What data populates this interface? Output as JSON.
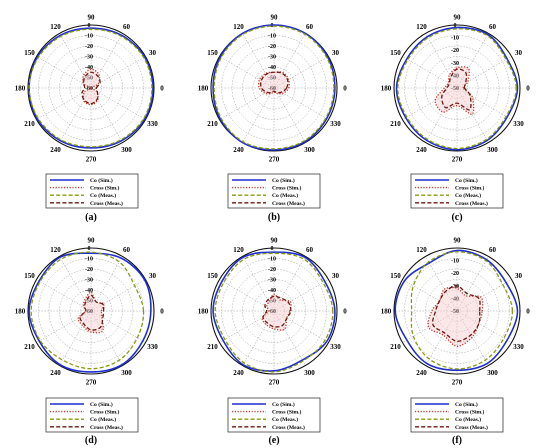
{
  "figure": {
    "panels": [
      "a",
      "b",
      "c",
      "d",
      "e",
      "f"
    ]
  },
  "chart_data": [
    {
      "type": "polar-line",
      "panel_label": "(a)",
      "angle_ticks": [
        "0",
        "30",
        "60",
        "90",
        "120",
        "150",
        "180",
        "210",
        "240",
        "270",
        "300",
        "330"
      ],
      "radial_ticks": [
        "0",
        "-10",
        "-20",
        "-30",
        "-40",
        "-50",
        "-60"
      ],
      "rlim": [
        -60,
        0
      ],
      "grid": true,
      "legend": [
        "Co (Sim.)",
        "Cross (Sim.)",
        "Co (Meas.)",
        "Cross (Meas.)"
      ],
      "series": [
        {
          "name": "Co (Sim.)",
          "style": "solid",
          "color": "#1f2fd0",
          "angles": [
            0,
            30,
            60,
            90,
            120,
            150,
            180,
            210,
            240,
            270,
            300,
            330
          ],
          "values": [
            -1,
            -1,
            -2,
            -3,
            -2,
            -1,
            -1,
            -1,
            -2,
            -3,
            -2,
            -1
          ]
        },
        {
          "name": "Cross (Sim.)",
          "style": "dotted",
          "color": "#c0392b",
          "angles": [
            0,
            30,
            60,
            90,
            120,
            150,
            180,
            210,
            240,
            270,
            300,
            330
          ],
          "values": [
            -60,
            -52,
            -45,
            -42,
            -46,
            -52,
            -60,
            -53,
            -46,
            -44,
            -47,
            -54
          ]
        },
        {
          "name": "Co (Meas.)",
          "style": "dashed",
          "color": "#8a9a10",
          "angles": [
            0,
            30,
            60,
            90,
            120,
            150,
            180,
            210,
            240,
            270,
            300,
            330
          ],
          "values": [
            -2,
            -2,
            -3,
            -4,
            -3,
            -2,
            -1,
            -2,
            -3,
            -4,
            -3,
            -2
          ]
        },
        {
          "name": "Cross (Meas.)",
          "style": "dashed",
          "color": "#6b1a10",
          "angles": [
            0,
            30,
            60,
            90,
            120,
            150,
            180,
            210,
            240,
            270,
            300,
            330
          ],
          "values": [
            -55,
            -50,
            -47,
            -45,
            -48,
            -52,
            -54,
            -50,
            -47,
            -45,
            -48,
            -53
          ]
        }
      ]
    },
    {
      "type": "polar-line",
      "panel_label": "(b)",
      "angle_ticks": [
        "0",
        "30",
        "60",
        "90",
        "120",
        "150",
        "180",
        "210",
        "240",
        "270",
        "300",
        "330"
      ],
      "radial_ticks": [
        "0",
        "-10",
        "-20",
        "-30",
        "-40",
        "-50",
        "-60"
      ],
      "rlim": [
        -60,
        0
      ],
      "grid": true,
      "legend": [
        "Co (Sim.)",
        "Cross (Sim.)",
        "Co (Meas.)",
        "Cross (Meas.)"
      ],
      "series": [
        {
          "name": "Co (Sim.)",
          "style": "solid",
          "color": "#1f2fd0",
          "angles": [
            0,
            30,
            60,
            90,
            120,
            150,
            180,
            210,
            240,
            270,
            300,
            330
          ],
          "values": [
            -2,
            -1,
            0,
            0,
            0,
            -1,
            -2,
            -1,
            0,
            -1,
            -1,
            -2
          ]
        },
        {
          "name": "Cross (Sim.)",
          "style": "dotted",
          "color": "#c0392b",
          "angles": [
            0,
            30,
            60,
            90,
            120,
            150,
            180,
            210,
            240,
            270,
            300,
            330
          ],
          "values": [
            -46,
            -44,
            -43,
            -45,
            -44,
            -44,
            -46,
            -50,
            -54,
            -56,
            -54,
            -50
          ]
        },
        {
          "name": "Co (Meas.)",
          "style": "dashed",
          "color": "#8a9a10",
          "angles": [
            0,
            30,
            60,
            90,
            120,
            150,
            180,
            210,
            240,
            270,
            300,
            330
          ],
          "values": [
            -3,
            -2,
            -1,
            -1,
            -1,
            -2,
            -3,
            -2,
            -1,
            -2,
            -2,
            -3
          ]
        },
        {
          "name": "Cross (Meas.)",
          "style": "dashed",
          "color": "#6b1a10",
          "angles": [
            0,
            30,
            60,
            90,
            120,
            150,
            180,
            210,
            240,
            270,
            300,
            330
          ],
          "values": [
            -48,
            -45,
            -44,
            -45,
            -45,
            -46,
            -48,
            -52,
            -55,
            -57,
            -55,
            -52
          ]
        }
      ]
    },
    {
      "type": "polar-line",
      "panel_label": "(c)",
      "angle_ticks": [
        "0",
        "30",
        "60",
        "90",
        "120",
        "150",
        "180",
        "210",
        "240",
        "270",
        "300",
        "330"
      ],
      "radial_ticks": [
        "0",
        "-10",
        "-20",
        "-30",
        "-40",
        "-50"
      ],
      "rlim": [
        -50,
        0
      ],
      "grid": true,
      "legend": [
        "Co (Sim.)",
        "Cross (Sim.)",
        "Co (Meas.)",
        "Cross (Meas.)"
      ],
      "series": [
        {
          "name": "Co (Sim.)",
          "style": "solid",
          "color": "#1f2fd0",
          "angles": [
            0,
            30,
            60,
            90,
            120,
            150,
            180,
            210,
            240,
            270,
            300,
            330
          ],
          "values": [
            -2,
            -4,
            -1,
            -2,
            -3,
            -4,
            -2,
            -3,
            -2,
            -1,
            -2,
            -4
          ]
        },
        {
          "name": "Cross (Sim.)",
          "style": "dotted",
          "color": "#c0392b",
          "angles": [
            0,
            30,
            60,
            90,
            120,
            150,
            180,
            210,
            240,
            270,
            300,
            330
          ],
          "values": [
            -45,
            -40,
            -32,
            -34,
            -38,
            -42,
            -40,
            -30,
            -28,
            -36,
            -26,
            -36
          ]
        },
        {
          "name": "Co (Meas.)",
          "style": "dashed",
          "color": "#8a9a10",
          "angles": [
            0,
            30,
            60,
            90,
            120,
            150,
            180,
            210,
            240,
            270,
            300,
            330
          ],
          "values": [
            -3,
            -5,
            -2,
            -3,
            -4,
            -5,
            -3,
            -4,
            -3,
            -2,
            -3,
            -5
          ]
        },
        {
          "name": "Cross (Meas.)",
          "style": "dashed",
          "color": "#6b1a10",
          "angles": [
            0,
            30,
            60,
            90,
            120,
            150,
            180,
            210,
            240,
            270,
            300,
            330
          ],
          "values": [
            -44,
            -42,
            -36,
            -35,
            -40,
            -43,
            -42,
            -36,
            -32,
            -38,
            -30,
            -38
          ]
        }
      ]
    },
    {
      "type": "polar-line",
      "panel_label": "(d)",
      "angle_ticks": [
        "0",
        "30",
        "60",
        "90",
        "120",
        "150",
        "180",
        "210",
        "240",
        "270",
        "300",
        "330"
      ],
      "radial_ticks": [
        "0",
        "-10",
        "-20",
        "-30",
        "-40",
        "-50",
        "-60"
      ],
      "rlim": [
        -60,
        0
      ],
      "grid": true,
      "legend": [
        "Co (Sim.)",
        "Cross (Sim.)",
        "Co (Meas.)",
        "Cross (Meas.)"
      ],
      "series": [
        {
          "name": "Co (Sim.)",
          "style": "solid",
          "color": "#1f2fd0",
          "angles": [
            0,
            30,
            60,
            90,
            120,
            150,
            180,
            210,
            240,
            270,
            300,
            330
          ],
          "values": [
            -3,
            -1,
            -2,
            -5,
            -1,
            -3,
            -1,
            -3,
            -1,
            -2,
            -1,
            -3
          ]
        },
        {
          "name": "Cross (Sim.)",
          "style": "dotted",
          "color": "#c0392b",
          "angles": [
            0,
            30,
            60,
            90,
            120,
            150,
            180,
            210,
            240,
            270,
            300,
            330
          ],
          "values": [
            -50,
            -46,
            -50,
            -42,
            -48,
            -52,
            -55,
            -46,
            -44,
            -40,
            -38,
            -48
          ]
        },
        {
          "name": "Co (Meas.)",
          "style": "dashed",
          "color": "#8a9a10",
          "angles": [
            0,
            30,
            60,
            90,
            120,
            150,
            180,
            210,
            240,
            270,
            300,
            330
          ],
          "values": [
            -10,
            -12,
            -6,
            -4,
            -3,
            -4,
            -3,
            -4,
            -6,
            -5,
            -6,
            -9
          ]
        },
        {
          "name": "Cross (Meas.)",
          "style": "dashed",
          "color": "#6b1a10",
          "angles": [
            0,
            30,
            60,
            90,
            120,
            150,
            180,
            210,
            240,
            270,
            300,
            330
          ],
          "values": [
            -48,
            -47,
            -50,
            -45,
            -50,
            -53,
            -55,
            -48,
            -46,
            -42,
            -42,
            -47
          ]
        }
      ]
    },
    {
      "type": "polar-line",
      "panel_label": "(e)",
      "angle_ticks": [
        "0",
        "30",
        "60",
        "90",
        "120",
        "150",
        "180",
        "210",
        "240",
        "270",
        "300",
        "330"
      ],
      "radial_ticks": [
        "0",
        "-10",
        "-20",
        "-30",
        "-40",
        "-50",
        "-60"
      ],
      "rlim": [
        -60,
        0
      ],
      "grid": true,
      "legend": [
        "Co (Sim.)",
        "Cross (Sim.)",
        "Co (Meas.)",
        "Cross (Meas.)"
      ],
      "series": [
        {
          "name": "Co (Sim.)",
          "style": "solid",
          "color": "#1f2fd0",
          "angles": [
            0,
            30,
            60,
            90,
            120,
            150,
            180,
            210,
            240,
            270,
            300,
            330
          ],
          "values": [
            -2,
            -4,
            -1,
            -4,
            -1,
            -3,
            -2,
            -4,
            -1,
            -3,
            -6,
            -2
          ]
        },
        {
          "name": "Cross (Sim.)",
          "style": "dotted",
          "color": "#c0392b",
          "angles": [
            0,
            30,
            60,
            90,
            120,
            150,
            180,
            210,
            240,
            270,
            300,
            330
          ],
          "values": [
            -45,
            -42,
            -48,
            -44,
            -50,
            -52,
            -55,
            -47,
            -45,
            -43,
            -40,
            -46
          ]
        },
        {
          "name": "Co (Meas.)",
          "style": "dashed",
          "color": "#8a9a10",
          "angles": [
            0,
            30,
            60,
            90,
            120,
            150,
            180,
            210,
            240,
            270,
            300,
            330
          ],
          "values": [
            -4,
            -6,
            -3,
            -5,
            -3,
            -5,
            -4,
            -6,
            -3,
            -2,
            -5,
            -4
          ]
        },
        {
          "name": "Cross (Meas.)",
          "style": "dashed",
          "color": "#6b1a10",
          "angles": [
            0,
            30,
            60,
            90,
            120,
            150,
            180,
            210,
            240,
            270,
            300,
            330
          ],
          "values": [
            -44,
            -44,
            -46,
            -46,
            -48,
            -50,
            -53,
            -48,
            -47,
            -45,
            -44,
            -46
          ]
        }
      ]
    },
    {
      "type": "polar-line",
      "panel_label": "(f)",
      "angle_ticks": [
        "0",
        "30",
        "60",
        "90",
        "120",
        "150",
        "180",
        "210",
        "240",
        "270",
        "300",
        "330"
      ],
      "radial_ticks": [
        "-10",
        "-20",
        "-30",
        "-40",
        "-50"
      ],
      "rlim": [
        -50,
        0
      ],
      "grid": true,
      "legend": [
        "Co (Sim.)",
        "Cross (Sim.)",
        "Co (Meas.)",
        "Cross (Meas.)"
      ],
      "series": [
        {
          "name": "Co (Sim.)",
          "style": "solid",
          "color": "#1f2fd0",
          "angles": [
            0,
            30,
            60,
            90,
            120,
            150,
            180,
            210,
            240,
            270,
            300,
            330
          ],
          "values": [
            -2,
            -5,
            -3,
            -2,
            -6,
            -2,
            -1,
            -4,
            -2,
            -3,
            -2,
            -4
          ]
        },
        {
          "name": "Cross (Sim.)",
          "style": "dotted",
          "color": "#c0392b",
          "angles": [
            0,
            30,
            60,
            90,
            120,
            150,
            180,
            210,
            240,
            270,
            300,
            330
          ],
          "values": [
            -30,
            -28,
            -36,
            -32,
            -30,
            -34,
            -30,
            -24,
            -28,
            -22,
            -26,
            -30
          ]
        },
        {
          "name": "Co (Meas.)",
          "style": "dashed",
          "color": "#8a9a10",
          "angles": [
            0,
            30,
            60,
            90,
            120,
            150,
            180,
            210,
            240,
            270,
            300,
            330
          ],
          "values": [
            -6,
            -8,
            -4,
            -3,
            -5,
            -10,
            -14,
            -10,
            -6,
            -4,
            -5,
            -7
          ]
        },
        {
          "name": "Cross (Meas.)",
          "style": "dashed",
          "color": "#6b1a10",
          "angles": [
            0,
            30,
            60,
            90,
            120,
            150,
            180,
            210,
            240,
            270,
            300,
            330
          ],
          "values": [
            -32,
            -30,
            -34,
            -30,
            -32,
            -34,
            -33,
            -28,
            -30,
            -26,
            -28,
            -30
          ]
        }
      ]
    }
  ]
}
